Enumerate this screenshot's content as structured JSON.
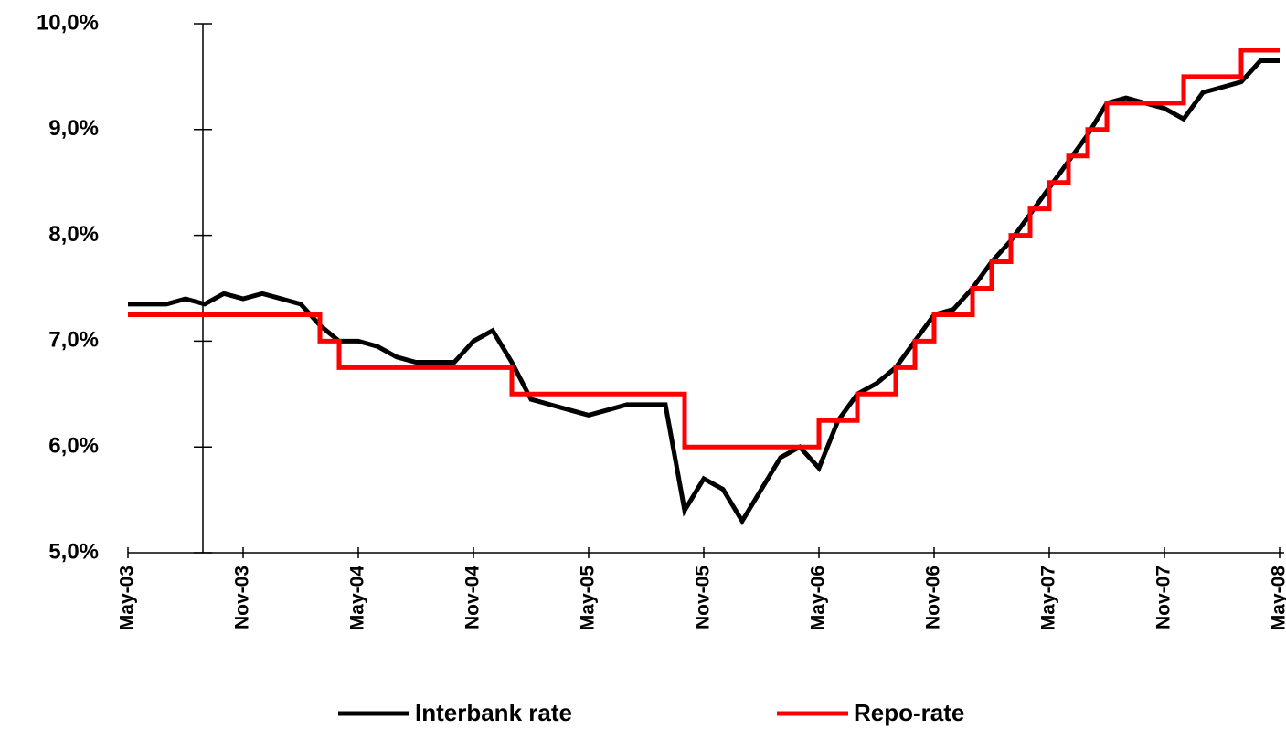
{
  "chart_data": {
    "type": "line",
    "categories": [
      "May-03",
      null,
      null,
      null,
      null,
      null,
      "Nov-03",
      null,
      null,
      null,
      null,
      null,
      "May-04",
      null,
      null,
      null,
      null,
      null,
      "Nov-04",
      null,
      null,
      null,
      null,
      null,
      "May-05",
      null,
      null,
      null,
      null,
      null,
      "Nov-05",
      null,
      null,
      null,
      null,
      null,
      "May-06",
      null,
      null,
      null,
      null,
      null,
      "Nov-06",
      null,
      null,
      null,
      null,
      null,
      "May-07",
      null,
      null,
      null,
      null,
      null,
      "Nov-07",
      null,
      null,
      null,
      null,
      null,
      "May-08"
    ],
    "series": [
      {
        "name": "Interbank rate",
        "color": "#000000",
        "step": false,
        "values": [
          7.35,
          7.35,
          7.35,
          7.4,
          7.35,
          7.45,
          7.4,
          7.45,
          7.4,
          7.35,
          7.15,
          7.0,
          7.0,
          6.95,
          6.85,
          6.8,
          6.8,
          6.8,
          7.0,
          7.1,
          6.8,
          6.45,
          6.4,
          6.35,
          6.3,
          6.35,
          6.4,
          6.4,
          6.4,
          5.4,
          5.7,
          5.6,
          5.3,
          5.6,
          5.9,
          6.0,
          5.8,
          6.25,
          6.5,
          6.6,
          6.75,
          7.0,
          7.25,
          7.3,
          7.5,
          7.75,
          7.95,
          8.2,
          8.45,
          8.7,
          8.95,
          9.25,
          9.3,
          9.25,
          9.2,
          9.1,
          9.35,
          9.4,
          9.45,
          9.65,
          9.65
        ]
      },
      {
        "name": "Repo-rate",
        "color": "#ff0000",
        "step": true,
        "values": [
          7.25,
          7.25,
          7.25,
          7.25,
          7.25,
          7.25,
          7.25,
          7.25,
          7.25,
          7.25,
          7.0,
          6.75,
          6.75,
          6.75,
          6.75,
          6.75,
          6.75,
          6.75,
          6.75,
          6.75,
          6.5,
          6.5,
          6.5,
          6.5,
          6.5,
          6.5,
          6.5,
          6.5,
          6.5,
          6.0,
          6.0,
          6.0,
          6.0,
          6.0,
          6.0,
          6.0,
          6.25,
          6.25,
          6.5,
          6.5,
          6.75,
          7.0,
          7.25,
          7.25,
          7.5,
          7.75,
          8.0,
          8.25,
          8.5,
          8.75,
          9.0,
          9.25,
          9.25,
          9.25,
          9.25,
          9.5,
          9.5,
          9.5,
          9.75,
          9.75,
          9.75
        ]
      }
    ],
    "ylim": [
      5,
      10
    ],
    "yticks": [
      {
        "value": 5,
        "label": "5,0%"
      },
      {
        "value": 6,
        "label": "6,0%"
      },
      {
        "value": 7,
        "label": "7,0%"
      },
      {
        "value": 8,
        "label": "8,0%"
      },
      {
        "value": 9,
        "label": "9,0%"
      },
      {
        "value": 10,
        "label": "10,0%"
      }
    ],
    "legend": "bottom"
  }
}
